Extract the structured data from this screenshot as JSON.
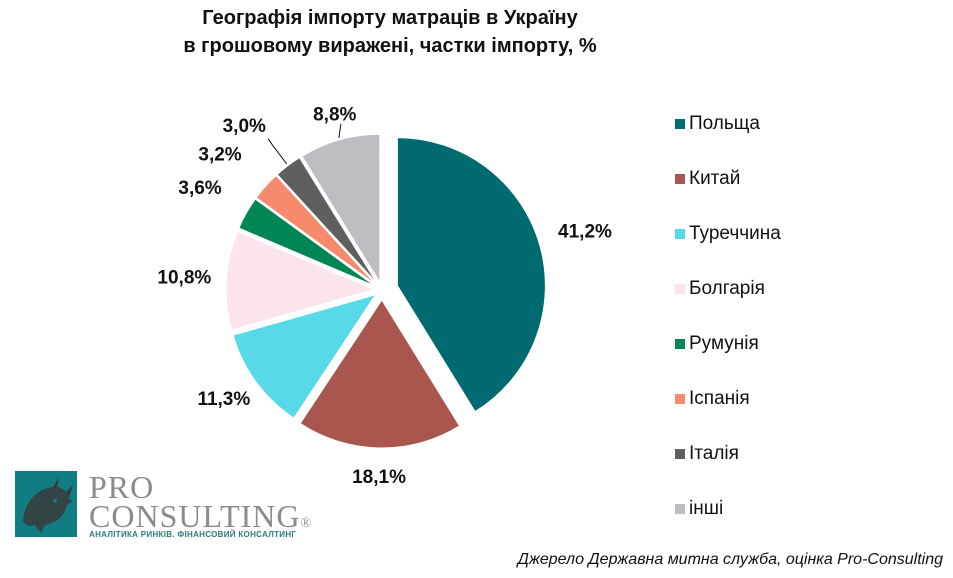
{
  "title": {
    "line1": "Географія імпорту матраців в Україну",
    "line2": "в грошовому виражені, частки імпорту, %"
  },
  "chart_data": {
    "type": "pie",
    "title": "Географія імпорту матраців в Україну в грошовому виражені, частки імпорту, %",
    "legend_position": "right",
    "slices": [
      {
        "name": "Польща",
        "value": 41.2,
        "label": "41,2%",
        "color": "#006a71"
      },
      {
        "name": "Китай",
        "value": 18.1,
        "label": "18,1%",
        "color": "#a9574e"
      },
      {
        "name": "Туреччина",
        "value": 11.3,
        "label": "11,3%",
        "color": "#57d9e8"
      },
      {
        "name": "Болгарія",
        "value": 10.8,
        "label": "10,8%",
        "color": "#fce4ef"
      },
      {
        "name": "Румунія",
        "value": 3.6,
        "label": "3,6%",
        "color": "#008555"
      },
      {
        "name": "Іспанія",
        "value": 3.2,
        "label": "3,2%",
        "color": "#f58a6c"
      },
      {
        "name": "Італія",
        "value": 3.0,
        "label": "3,0%",
        "color": "#5f5f5f"
      },
      {
        "name": "інші",
        "value": 8.8,
        "label": "8,8%",
        "color": "#bfbcc4"
      }
    ]
  },
  "logo": {
    "pro": "PRO",
    "consulting": "CONSULTING",
    "registered": "®",
    "subtitle": "АНАЛІТИКА РИНКІВ. ФІНАНСОВИЙ КОНСАЛТИНГ"
  },
  "source": "Джерело Державна митна служба, оцінка Pro-Consulting"
}
